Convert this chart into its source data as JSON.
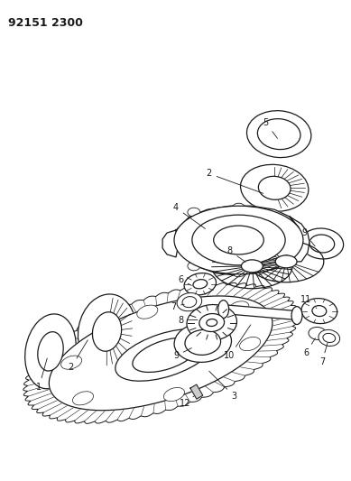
{
  "title": "92151 2300",
  "bg_color": "#ffffff",
  "line_color": "#1a1a1a",
  "fig_width": 3.89,
  "fig_height": 5.33,
  "dpi": 100
}
